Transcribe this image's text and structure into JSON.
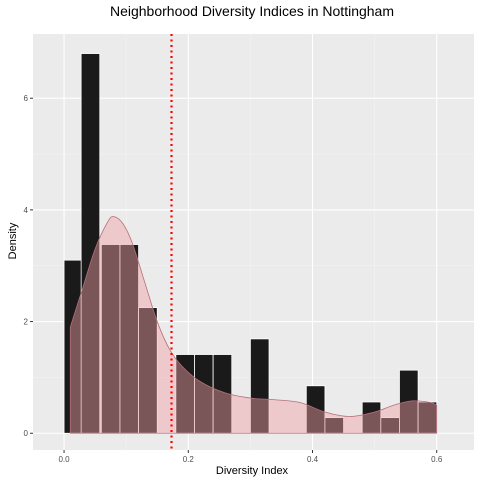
{
  "chart_data": {
    "type": "bar",
    "title": "Neighborhood Diversity Indices in Nottingham",
    "xlabel": "Diversity Index",
    "ylabel": "Density",
    "xlim": [
      -0.05,
      0.66
    ],
    "ylim": [
      -0.3,
      7.15
    ],
    "x_ticks": [
      0.0,
      0.2,
      0.4,
      0.6
    ],
    "x_tick_labels": [
      "0.0",
      "0.2",
      "0.4",
      "0.6"
    ],
    "y_ticks": [
      0,
      2,
      4,
      6
    ],
    "y_tick_labels": [
      "0",
      "2",
      "4",
      "6"
    ],
    "grid": true,
    "bin_width": 0.03,
    "histogram": [
      {
        "x": 0.0,
        "density": 3.1
      },
      {
        "x": 0.0275,
        "density": 6.8
      },
      {
        "x": 0.06,
        "density": 3.38
      },
      {
        "x": 0.09,
        "density": 3.38
      },
      {
        "x": 0.12,
        "density": 2.25
      },
      {
        "x": 0.18,
        "density": 1.41
      },
      {
        "x": 0.21,
        "density": 1.41
      },
      {
        "x": 0.24,
        "density": 1.41
      },
      {
        "x": 0.3,
        "density": 1.69
      },
      {
        "x": 0.39,
        "density": 0.85
      },
      {
        "x": 0.42,
        "density": 0.28
      },
      {
        "x": 0.48,
        "density": 0.56
      },
      {
        "x": 0.51,
        "density": 0.28
      },
      {
        "x": 0.54,
        "density": 1.13
      },
      {
        "x": 0.57,
        "density": 0.56
      }
    ],
    "density_curve": {
      "x": [
        0.01,
        0.03,
        0.05,
        0.07,
        0.08,
        0.095,
        0.11,
        0.13,
        0.15,
        0.17,
        0.19,
        0.22,
        0.26,
        0.3,
        0.34,
        0.38,
        0.42,
        0.46,
        0.5,
        0.53,
        0.56,
        0.59,
        0.6
      ],
      "y": [
        1.9,
        2.6,
        3.3,
        3.78,
        3.88,
        3.75,
        3.4,
        2.7,
        2.0,
        1.5,
        1.2,
        0.92,
        0.72,
        0.63,
        0.6,
        0.55,
        0.38,
        0.3,
        0.38,
        0.5,
        0.58,
        0.55,
        0.5
      ]
    },
    "vline": {
      "x": 0.173,
      "style": "dotted",
      "color": "#ff0000"
    },
    "colors": {
      "panel": "#ebebeb",
      "grid_major": "#ffffff",
      "grid_minor": "#f4f4f4",
      "bar_fill": "#1a1a1a",
      "bar_stroke": "#ffffff",
      "density_fill": "#f2a0a6",
      "density_stroke": "#b3707a",
      "tick": "#333333"
    }
  }
}
